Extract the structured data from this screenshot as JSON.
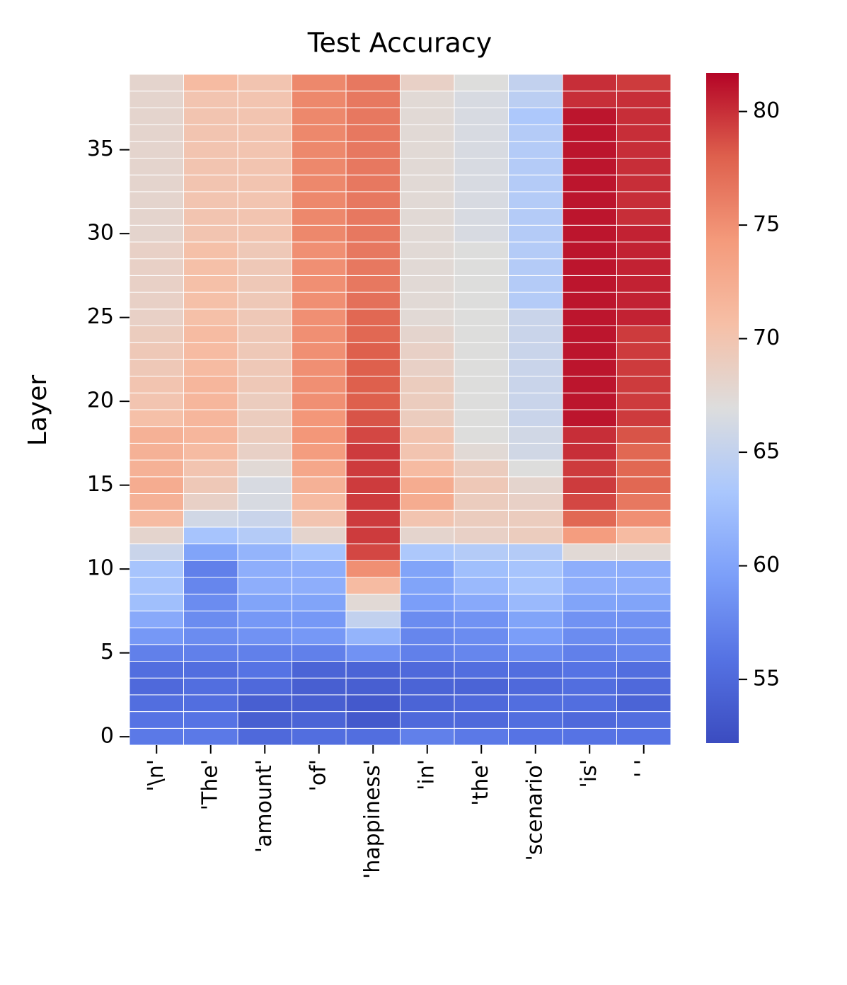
{
  "chart_data": {
    "type": "heatmap",
    "title": "Test Accuracy",
    "ylabel": "Layer",
    "categories": [
      "'\\n'",
      "'The'",
      "'amount'",
      "'of'",
      "'happiness'",
      "'in'",
      "'the'",
      "'scenario'",
      "'is'",
      "' '"
    ],
    "y": [
      0,
      1,
      2,
      3,
      4,
      5,
      6,
      7,
      8,
      9,
      10,
      11,
      12,
      13,
      14,
      15,
      16,
      17,
      18,
      19,
      20,
      21,
      22,
      23,
      24,
      25,
      26,
      27,
      28,
      29,
      30,
      31,
      32,
      33,
      34,
      35,
      36,
      37,
      38,
      39
    ],
    "ylim": [
      -0.5,
      39.5
    ],
    "yticks": [
      0,
      5,
      10,
      15,
      20,
      25,
      30,
      35
    ],
    "colormap": "coolwarm",
    "clim": [
      52.2,
      81.7
    ],
    "cticks": [
      55,
      60,
      65,
      70,
      75,
      80
    ],
    "values": [
      [
        56.5,
        56,
        55.5,
        55,
        55.5,
        57,
        59,
        60.5,
        62.5,
        63,
        63,
        65.5,
        68,
        71,
        72,
        72.5,
        72,
        72,
        72,
        70.5,
        70,
        70,
        69.5,
        69.5,
        69,
        68.5,
        68.5,
        68.5,
        68.5,
        68.5,
        68,
        68,
        68,
        68,
        68,
        68,
        68,
        68,
        68,
        68
      ],
      [
        56.5,
        56,
        55.5,
        55.5,
        55.5,
        57,
        58,
        58,
        58,
        57.5,
        57,
        60,
        63,
        66,
        68.5,
        69.5,
        70,
        71,
        71.5,
        71.5,
        71.5,
        71.5,
        71,
        71,
        71,
        70.5,
        70.5,
        70.5,
        70.5,
        70.5,
        70,
        70,
        70,
        70,
        70,
        70,
        70,
        70,
        70,
        71
      ],
      [
        55,
        54,
        54,
        55,
        56,
        57,
        58.5,
        59,
        60,
        61,
        61,
        61.5,
        64,
        65.5,
        66.5,
        66.5,
        67.5,
        68.5,
        69,
        69,
        69,
        69.5,
        69.5,
        69.5,
        69.5,
        69.5,
        69.5,
        69.5,
        69.5,
        69.5,
        70,
        70,
        70,
        70,
        70,
        70,
        70,
        70,
        70,
        70
      ],
      [
        55.5,
        54.5,
        54,
        54,
        54.5,
        57,
        59,
        59,
        60,
        61,
        61,
        63,
        68,
        70,
        71,
        72,
        73,
        74,
        74.5,
        74.5,
        75,
        75,
        75,
        75,
        75,
        75,
        75,
        75,
        75,
        75,
        75.5,
        75.5,
        75.5,
        75.5,
        75.5,
        75.5,
        75.5,
        75.5,
        75.5,
        75.5
      ],
      [
        55.5,
        53.5,
        53.5,
        54,
        54.5,
        58.5,
        61.5,
        65,
        67.5,
        71,
        75,
        79,
        79.5,
        79.5,
        79.5,
        79.5,
        79.5,
        79.5,
        79,
        78.5,
        78,
        78,
        78,
        78,
        77.5,
        77.5,
        77,
        76.5,
        76.5,
        76.5,
        76.5,
        76.5,
        76.5,
        76.5,
        76.5,
        76.5,
        76.5,
        76.5,
        76.5,
        76.5
      ],
      [
        57,
        55,
        54.5,
        54.5,
        55,
        57,
        57.5,
        58,
        59.5,
        60,
        60,
        63.5,
        68,
        70,
        72.5,
        72.5,
        71,
        70,
        70,
        69,
        69,
        69,
        68.5,
        68.5,
        68,
        67.5,
        67.5,
        67.5,
        67.5,
        67.5,
        67.5,
        67.5,
        67.5,
        67.5,
        67.5,
        67.5,
        67.5,
        67.5,
        67.5,
        68.5
      ],
      [
        56.5,
        55,
        55,
        54.5,
        55.5,
        57.5,
        58,
        58.5,
        60.5,
        62,
        62.5,
        64,
        68.5,
        69,
        69,
        69.5,
        69,
        67.5,
        67,
        67,
        67,
        67,
        67,
        67,
        67,
        67,
        67,
        67,
        67,
        67,
        66.5,
        66.5,
        66.5,
        66.5,
        66.5,
        66.5,
        66.5,
        66.5,
        66.5,
        67
      ],
      [
        56,
        55.5,
        55.5,
        55,
        55.5,
        58,
        59.5,
        60,
        62,
        63,
        63,
        64,
        69,
        69,
        68.5,
        68,
        67,
        66,
        66,
        65.5,
        65.5,
        65.5,
        65.5,
        65.5,
        65.5,
        65.5,
        64,
        64,
        64,
        64,
        64,
        64,
        64,
        64,
        64,
        64,
        64,
        63.5,
        64.5,
        65
      ],
      [
        56,
        55,
        55.5,
        55.5,
        56,
        57,
        58,
        58.5,
        60,
        61,
        61,
        67.5,
        74,
        77.5,
        79,
        79.5,
        79.5,
        80,
        80,
        81,
        81,
        81,
        81,
        81,
        81,
        81,
        81,
        81,
        81,
        81,
        81,
        81,
        81,
        81,
        81,
        81,
        81,
        81,
        80,
        80
      ],
      [
        56,
        55.5,
        54.5,
        55,
        55.5,
        57.5,
        58,
        58.5,
        60,
        61,
        61,
        67.5,
        71,
        75,
        76.5,
        77.5,
        77.5,
        77.5,
        78.5,
        79.5,
        79.5,
        79.5,
        79.5,
        79.5,
        79.5,
        80.5,
        80.5,
        80.5,
        80.5,
        80.5,
        80.5,
        80,
        80,
        80,
        80,
        80,
        80,
        80,
        80,
        79.5
      ]
    ]
  }
}
